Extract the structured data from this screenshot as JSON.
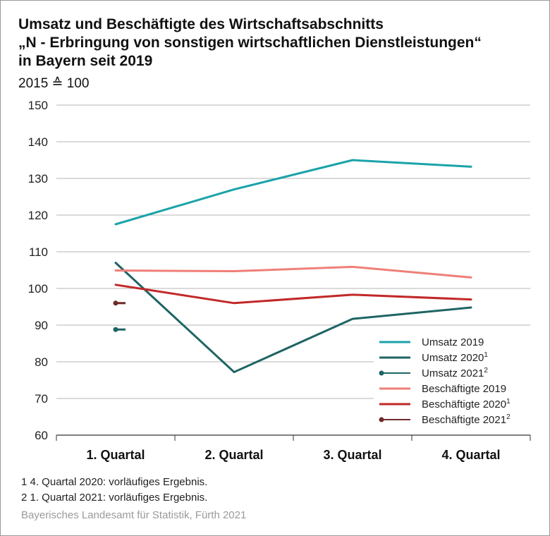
{
  "title_lines": [
    "Umsatz und Beschäftigte des Wirtschaftsabschnitts",
    "„N - Erbringung von sonstigen wirtschaftlichen Dienstleistungen“",
    "in Bayern seit 2019"
  ],
  "subtitle": "2015 ≙ 100",
  "footnotes": [
    "1  4. Quartal 2020: vorläufiges Ergebnis.",
    "2  1. Quartal 2021: vorläufiges Ergebnis."
  ],
  "source": "Bayerisches Landesamt für Statistik, Fürth 2021",
  "chart_data": {
    "type": "line",
    "title": "Umsatz und Beschäftigte des Wirtschaftsabschnitts „N - Erbringung von sonstigen wirtschaftlichen Dienstleistungen“ in Bayern seit 2019",
    "subtitle": "2015 ≙ 100",
    "categories": [
      "1. Quartal",
      "2. Quartal",
      "3. Quartal",
      "4. Quartal"
    ],
    "xlabel": "",
    "ylabel": "",
    "ylim": [
      60,
      150
    ],
    "yticks": [
      60,
      70,
      80,
      90,
      100,
      110,
      120,
      130,
      140,
      150
    ],
    "grid": "horizontal",
    "legend_position": "bottom-right",
    "series": [
      {
        "name": "Umsatz 2019",
        "sup": "",
        "color": "#1aa3a8",
        "style": "line",
        "values": [
          117.5,
          127,
          135,
          133.2
        ]
      },
      {
        "name": "Umsatz 2020",
        "sup": "1",
        "color": "#1f6464",
        "style": "line",
        "values": [
          107,
          77.2,
          91.7,
          94.8
        ]
      },
      {
        "name": "Umsatz 2021",
        "sup": "2",
        "color": "#1f6464",
        "style": "point",
        "values": [
          88.8,
          null,
          null,
          null
        ]
      },
      {
        "name": "Beschäftigte 2019",
        "sup": "",
        "color": "#ef7f78",
        "style": "line",
        "values": [
          104.9,
          104.7,
          105.9,
          103
        ]
      },
      {
        "name": "Beschäftigte 2020",
        "sup": "1",
        "color": "#c22828",
        "style": "line",
        "values": [
          101,
          96,
          98.3,
          97
        ]
      },
      {
        "name": "Beschäftigte 2021",
        "sup": "2",
        "color": "#6e2a2a",
        "style": "point",
        "values": [
          96,
          null,
          null,
          null
        ]
      }
    ]
  }
}
